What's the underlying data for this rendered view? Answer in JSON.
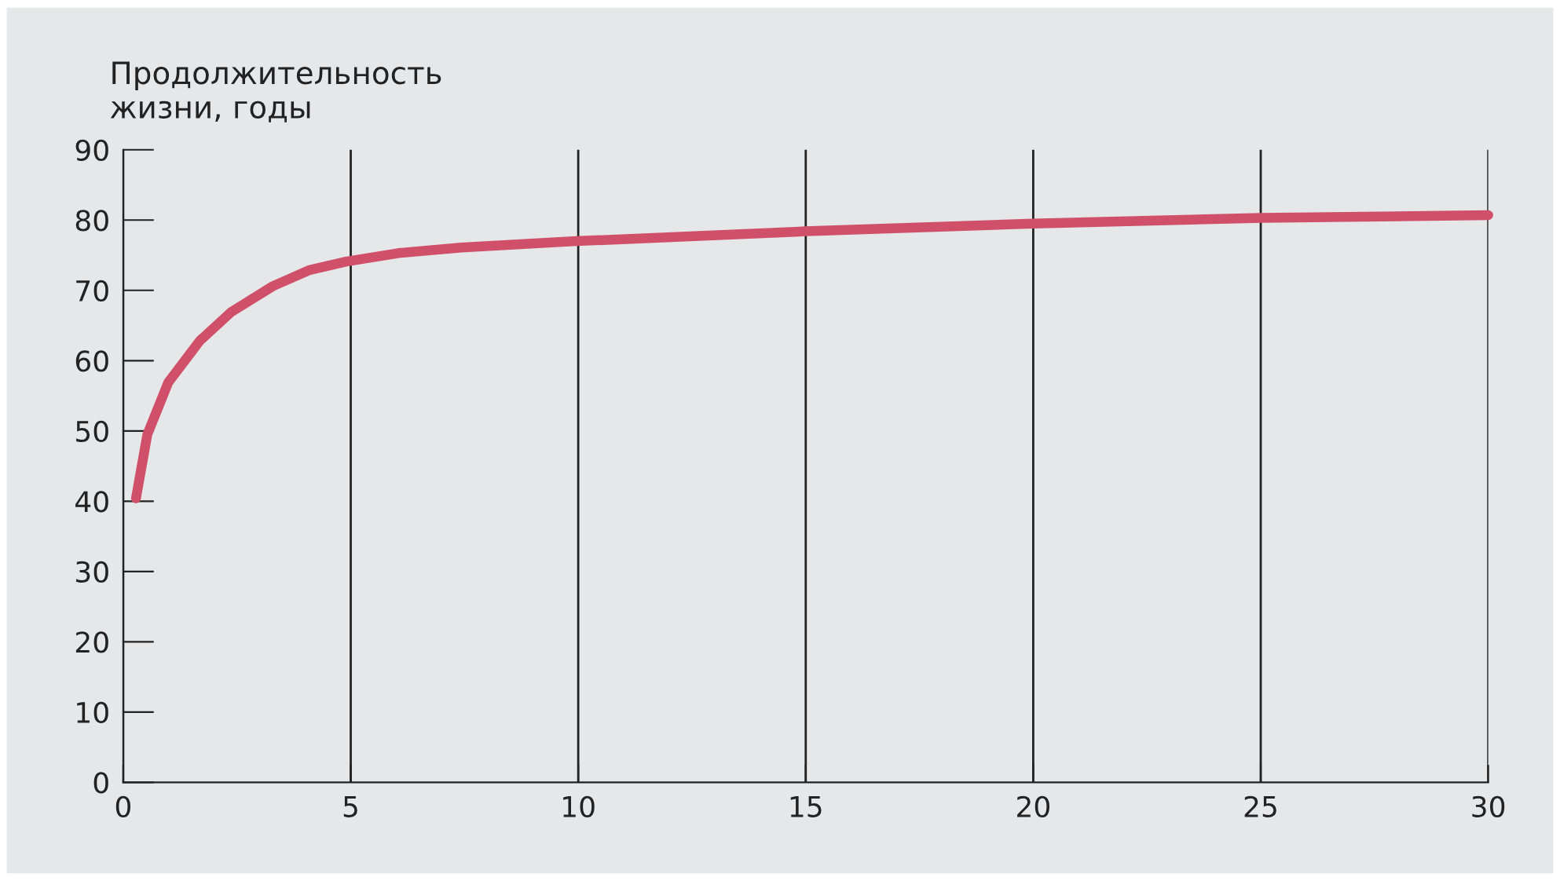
{
  "chart_data": {
    "type": "line",
    "ylabel": "Продолжительность\nжизни, годы",
    "x": [
      0.28,
      0.53,
      0.99,
      1.68,
      2.37,
      3.29,
      4.1,
      4.9,
      6.05,
      7.43,
      9.96,
      15,
      20,
      25,
      30
    ],
    "series": [
      {
        "color": "#d0506a",
        "values": [
          40.4,
          49.5,
          56.9,
          62.8,
          66.9,
          70.6,
          72.9,
          74.1,
          75.3,
          76.1,
          77.0,
          78.4,
          79.5,
          80.3,
          80.7
        ]
      }
    ],
    "xlim": [
      0,
      30
    ],
    "ylim": [
      0,
      90
    ],
    "xticks": [
      0,
      5,
      10,
      15,
      20,
      25,
      30
    ],
    "yticks": [
      0,
      10,
      20,
      30,
      40,
      50,
      60,
      70,
      80,
      90
    ],
    "grid": "x",
    "legend": false,
    "marker": "none",
    "line_style": "solid"
  }
}
